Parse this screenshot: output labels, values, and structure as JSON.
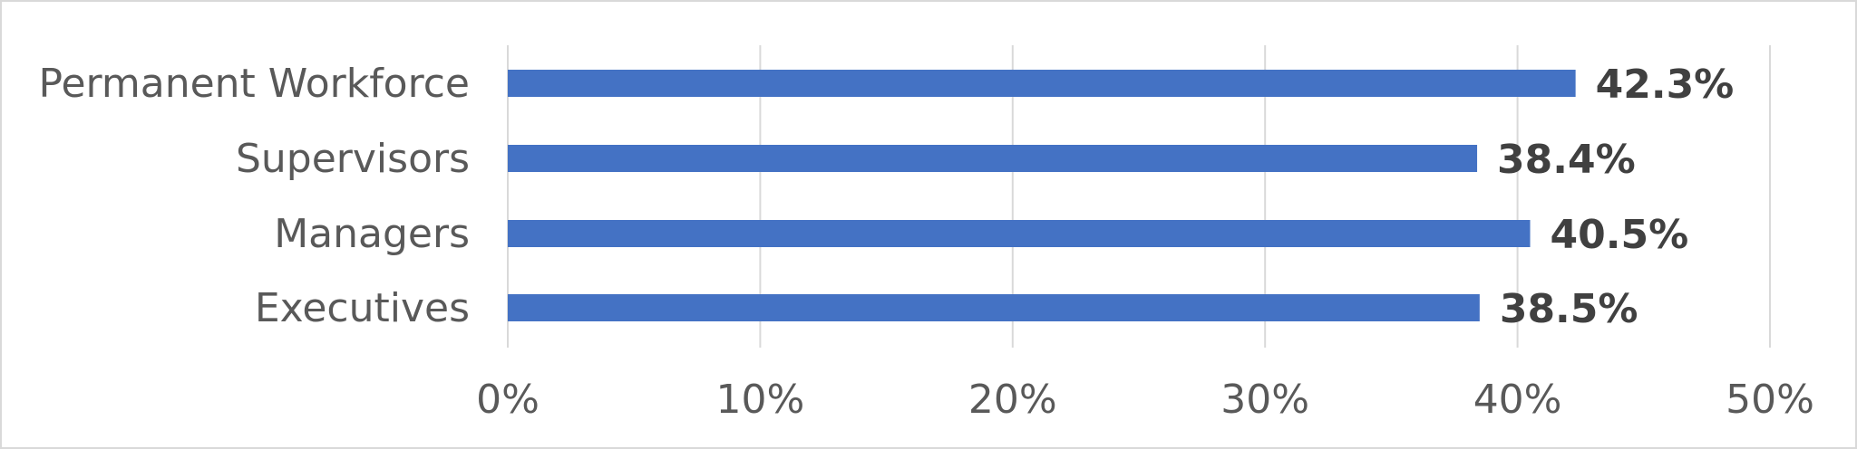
{
  "chart_data": {
    "type": "bar",
    "orientation": "horizontal",
    "categories": [
      "Permanent Workforce",
      "Supervisors",
      "Managers",
      "Executives"
    ],
    "values": [
      42.3,
      38.4,
      40.5,
      38.5
    ],
    "data_labels": [
      "42.3%",
      "38.4%",
      "40.5%",
      "38.5%"
    ],
    "x_ticks": [
      "0%",
      "10%",
      "20%",
      "30%",
      "40%",
      "50%"
    ],
    "xlim": [
      0,
      50
    ],
    "title": "",
    "xlabel": "",
    "ylabel": "",
    "grid": "vertical",
    "legend": "none",
    "colors": {
      "bar": "#4472c4",
      "grid": "#d9d9d9",
      "text": "#595959",
      "data_label": "#404040",
      "border": "#d9d9d9"
    }
  }
}
